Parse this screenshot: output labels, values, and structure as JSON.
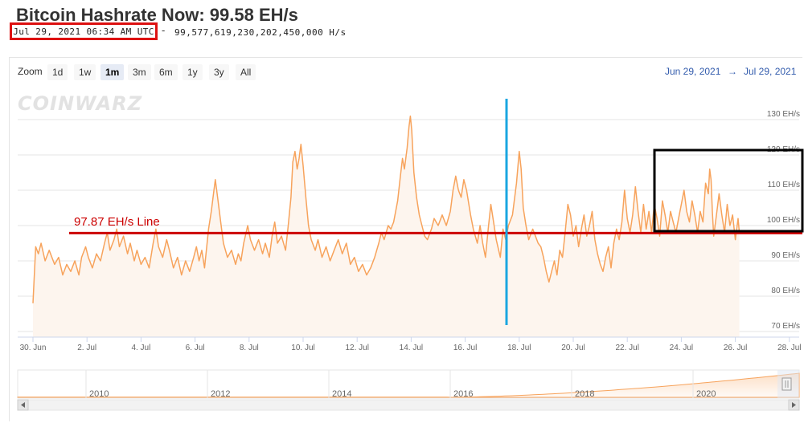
{
  "header": {
    "title": "Bitcoin Hashrate Now: 99.58 EH/s",
    "timestamp": "Jul 29, 2021 06:34 AM UTC",
    "separator": "-",
    "hashrate_hs": "99,577,619,230,202,450,000 H/s"
  },
  "controls": {
    "zoom_label": "Zoom",
    "zoom_buttons": [
      "1d",
      "1w",
      "1m",
      "3m",
      "6m",
      "1y",
      "3y",
      "All"
    ],
    "active_zoom": "1m",
    "range_from": "Jun 29, 2021",
    "range_arrow": "→",
    "range_to": "Jul 29, 2021"
  },
  "watermark": "COINWARZ",
  "annotation": {
    "line_label": "97.87 EH/s Line",
    "line_value": 97.87
  },
  "navigator": {
    "years": [
      "2010",
      "2012",
      "2014",
      "2016",
      "2018",
      "2020"
    ]
  },
  "colors": {
    "series": "#f7a35c",
    "area": "#fdf6f0",
    "annotation_line": "#cc0000",
    "vertical_marker": "#1aa6e0",
    "box": "#000000",
    "link": "#335cad"
  },
  "chart_data": {
    "type": "area",
    "series": [
      {
        "values": [
          [
            0.0,
            78
          ],
          [
            0.1,
            94
          ],
          [
            0.2,
            92
          ],
          [
            0.3,
            95
          ],
          [
            0.45,
            90
          ],
          [
            0.6,
            93
          ],
          [
            0.8,
            89
          ],
          [
            0.95,
            91
          ],
          [
            1.1,
            86
          ],
          [
            1.25,
            89
          ],
          [
            1.4,
            87
          ],
          [
            1.55,
            90
          ],
          [
            1.7,
            86
          ],
          [
            1.8,
            91
          ],
          [
            1.95,
            94
          ],
          [
            2.05,
            91
          ],
          [
            2.2,
            88
          ],
          [
            2.35,
            92
          ],
          [
            2.5,
            90
          ],
          [
            2.65,
            95
          ],
          [
            2.75,
            98
          ],
          [
            2.85,
            93
          ],
          [
            3.0,
            96
          ],
          [
            3.1,
            99
          ],
          [
            3.2,
            94
          ],
          [
            3.35,
            97
          ],
          [
            3.5,
            92
          ],
          [
            3.6,
            95
          ],
          [
            3.75,
            90
          ],
          [
            3.85,
            93
          ],
          [
            4.0,
            89
          ],
          [
            4.15,
            91
          ],
          [
            4.3,
            88
          ],
          [
            4.45,
            95
          ],
          [
            4.55,
            99
          ],
          [
            4.65,
            94
          ],
          [
            4.8,
            91
          ],
          [
            4.95,
            96
          ],
          [
            5.05,
            93
          ],
          [
            5.2,
            88
          ],
          [
            5.35,
            91
          ],
          [
            5.5,
            86
          ],
          [
            5.65,
            90
          ],
          [
            5.8,
            87
          ],
          [
            5.95,
            91
          ],
          [
            6.05,
            94
          ],
          [
            6.15,
            90
          ],
          [
            6.25,
            93
          ],
          [
            6.35,
            88
          ],
          [
            6.5,
            99
          ],
          [
            6.6,
            104
          ],
          [
            6.7,
            110
          ],
          [
            6.75,
            113
          ],
          [
            6.85,
            107
          ],
          [
            6.95,
            101
          ],
          [
            7.05,
            95
          ],
          [
            7.2,
            91
          ],
          [
            7.35,
            93
          ],
          [
            7.5,
            89
          ],
          [
            7.6,
            92
          ],
          [
            7.7,
            90
          ],
          [
            7.8,
            95
          ],
          [
            7.95,
            100
          ],
          [
            8.05,
            96
          ],
          [
            8.2,
            93
          ],
          [
            8.35,
            96
          ],
          [
            8.5,
            92
          ],
          [
            8.6,
            95
          ],
          [
            8.75,
            91
          ],
          [
            8.85,
            97
          ],
          [
            8.95,
            101
          ],
          [
            9.05,
            95
          ],
          [
            9.2,
            97
          ],
          [
            9.35,
            93
          ],
          [
            9.45,
            100
          ],
          [
            9.55,
            108
          ],
          [
            9.62,
            118
          ],
          [
            9.7,
            121
          ],
          [
            9.78,
            116
          ],
          [
            9.85,
            119
          ],
          [
            9.92,
            123
          ],
          [
            10.0,
            117
          ],
          [
            10.1,
            108
          ],
          [
            10.2,
            100
          ],
          [
            10.3,
            96
          ],
          [
            10.45,
            93
          ],
          [
            10.55,
            96
          ],
          [
            10.7,
            91
          ],
          [
            10.85,
            94
          ],
          [
            11.0,
            90
          ],
          [
            11.15,
            93
          ],
          [
            11.3,
            96
          ],
          [
            11.45,
            92
          ],
          [
            11.6,
            95
          ],
          [
            11.75,
            89
          ],
          [
            11.9,
            91
          ],
          [
            12.05,
            87
          ],
          [
            12.2,
            89
          ],
          [
            12.35,
            86
          ],
          [
            12.5,
            88
          ],
          [
            12.65,
            91
          ],
          [
            12.8,
            95
          ],
          [
            12.9,
            98
          ],
          [
            13.0,
            96
          ],
          [
            13.15,
            100
          ],
          [
            13.25,
            99
          ],
          [
            13.35,
            101
          ],
          [
            13.5,
            107
          ],
          [
            13.6,
            114
          ],
          [
            13.68,
            119
          ],
          [
            13.75,
            116
          ],
          [
            13.85,
            122
          ],
          [
            13.92,
            128
          ],
          [
            13.97,
            131
          ],
          [
            14.02,
            127
          ],
          [
            14.1,
            115
          ],
          [
            14.2,
            108
          ],
          [
            14.3,
            103
          ],
          [
            14.4,
            100
          ],
          [
            14.5,
            97
          ],
          [
            14.6,
            96
          ],
          [
            14.75,
            99
          ],
          [
            14.85,
            102
          ],
          [
            15.0,
            100
          ],
          [
            15.15,
            103
          ],
          [
            15.3,
            100
          ],
          [
            15.45,
            104
          ],
          [
            15.55,
            110
          ],
          [
            15.65,
            114
          ],
          [
            15.75,
            110
          ],
          [
            15.85,
            108
          ],
          [
            15.95,
            113
          ],
          [
            16.05,
            110
          ],
          [
            16.2,
            103
          ],
          [
            16.3,
            99
          ],
          [
            16.45,
            95
          ],
          [
            16.55,
            100
          ],
          [
            16.65,
            95
          ],
          [
            16.75,
            91
          ],
          [
            16.85,
            99
          ],
          [
            16.95,
            106
          ],
          [
            17.05,
            101
          ],
          [
            17.15,
            96
          ],
          [
            17.3,
            91
          ],
          [
            17.4,
            99
          ],
          [
            17.5,
            96
          ],
          [
            17.6,
            100
          ],
          [
            17.75,
            103
          ],
          [
            17.9,
            112
          ],
          [
            18.0,
            121
          ],
          [
            18.07,
            116
          ],
          [
            18.15,
            105
          ],
          [
            18.25,
            100
          ],
          [
            18.35,
            96
          ],
          [
            18.5,
            99
          ],
          [
            18.6,
            97
          ],
          [
            18.7,
            95
          ],
          [
            18.8,
            94
          ],
          [
            18.9,
            91
          ],
          [
            19.0,
            87
          ],
          [
            19.1,
            84
          ],
          [
            19.2,
            87
          ],
          [
            19.3,
            90
          ],
          [
            19.4,
            86
          ],
          [
            19.5,
            93
          ],
          [
            19.6,
            91
          ],
          [
            19.7,
            98
          ],
          [
            19.8,
            106
          ],
          [
            19.9,
            103
          ],
          [
            20.0,
            97
          ],
          [
            20.1,
            100
          ],
          [
            20.2,
            94
          ],
          [
            20.3,
            99
          ],
          [
            20.4,
            103
          ],
          [
            20.5,
            97
          ],
          [
            20.6,
            100
          ],
          [
            20.7,
            104
          ],
          [
            20.8,
            96
          ],
          [
            20.9,
            92
          ],
          [
            21.0,
            89
          ],
          [
            21.1,
            87
          ],
          [
            21.2,
            91
          ],
          [
            21.3,
            94
          ],
          [
            21.4,
            88
          ],
          [
            21.5,
            95
          ],
          [
            21.6,
            99
          ],
          [
            21.7,
            96
          ],
          [
            21.8,
            101
          ],
          [
            21.9,
            110
          ],
          [
            22.0,
            102
          ],
          [
            22.1,
            98
          ],
          [
            22.2,
            103
          ],
          [
            22.3,
            111
          ],
          [
            22.4,
            104
          ],
          [
            22.5,
            98
          ],
          [
            22.6,
            106
          ],
          [
            22.7,
            99
          ],
          [
            22.8,
            104
          ],
          [
            22.9,
            98
          ],
          [
            23.0,
            106
          ],
          [
            23.1,
            102
          ],
          [
            23.2,
            97
          ],
          [
            23.3,
            107
          ],
          [
            23.4,
            103
          ],
          [
            23.5,
            98
          ],
          [
            23.6,
            104
          ],
          [
            23.7,
            101
          ],
          [
            23.8,
            98
          ],
          [
            23.9,
            102
          ],
          [
            24.0,
            106
          ],
          [
            24.1,
            110
          ],
          [
            24.2,
            104
          ],
          [
            24.3,
            101
          ],
          [
            24.4,
            107
          ],
          [
            24.5,
            103
          ],
          [
            24.6,
            98
          ],
          [
            24.7,
            104
          ],
          [
            24.8,
            101
          ],
          [
            24.9,
            112
          ],
          [
            25.0,
            109
          ],
          [
            25.05,
            116
          ],
          [
            25.1,
            113
          ],
          [
            25.15,
            104
          ],
          [
            25.2,
            97
          ],
          [
            25.3,
            103
          ],
          [
            25.4,
            109
          ],
          [
            25.5,
            103
          ],
          [
            25.6,
            98
          ],
          [
            25.7,
            106
          ],
          [
            25.8,
            100
          ],
          [
            25.9,
            103
          ],
          [
            26.0,
            96
          ],
          [
            26.1,
            102
          ],
          [
            26.15,
            98
          ]
        ]
      }
    ],
    "x_ticks": [
      "30. Jun",
      "2. Jul",
      "4. Jul",
      "6. Jul",
      "8. Jul",
      "10. Jul",
      "12. Jul",
      "14. Jul",
      "16. Jul",
      "18. Jul",
      "20. Jul",
      "22. Jul",
      "24. Jul",
      "26. Jul",
      "28. Jul"
    ],
    "y_ticks": [
      "70 EH/s",
      "80 EH/s",
      "90 EH/s",
      "100 EH/s",
      "110 EH/s",
      "120 EH/s",
      "130 EH/s"
    ],
    "ylim": [
      70,
      130
    ],
    "grid": true,
    "legend": "none",
    "annotations": [
      "97.87 EH/s Line"
    ]
  }
}
